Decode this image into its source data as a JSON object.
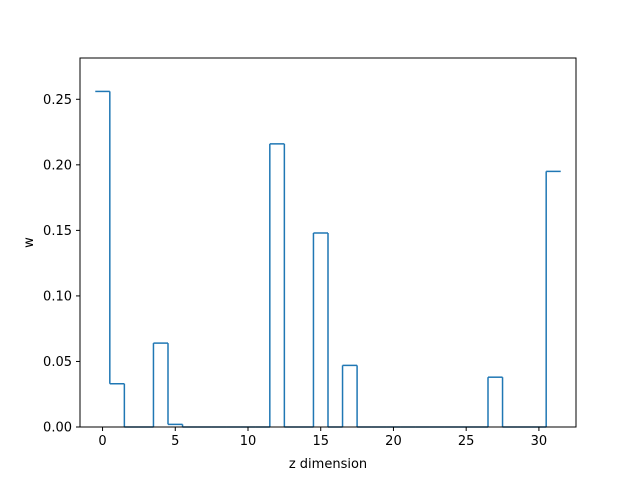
{
  "chart_data": {
    "type": "line",
    "style": "step",
    "xlabel": "z dimension",
    "ylabel": "w",
    "xlim": [
      -1.55,
      32.55
    ],
    "ylim": [
      0,
      0.2815
    ],
    "grid": false,
    "series_color": "#1f77b4",
    "x": [
      0,
      1,
      2,
      3,
      4,
      5,
      6,
      7,
      8,
      9,
      10,
      11,
      12,
      13,
      14,
      15,
      16,
      17,
      18,
      19,
      20,
      21,
      22,
      23,
      24,
      25,
      26,
      27,
      28,
      29,
      30,
      31
    ],
    "values": [
      0.256,
      0.033,
      0,
      0,
      0.064,
      0.002,
      0,
      0,
      0,
      0,
      0,
      0,
      0.216,
      0,
      0,
      0.148,
      0,
      0.047,
      0,
      0,
      0,
      0,
      0,
      0,
      0,
      0,
      0,
      0.038,
      0,
      0,
      0,
      0.195
    ],
    "xticks": [
      0,
      5,
      10,
      15,
      20,
      25,
      30
    ],
    "xtick_labels": [
      "0",
      "5",
      "10",
      "15",
      "20",
      "25",
      "30"
    ],
    "yticks": [
      0,
      0.05,
      0.1,
      0.15,
      0.2,
      0.25
    ],
    "ytick_labels": [
      "0.00",
      "0.05",
      "0.10",
      "0.15",
      "0.20",
      "0.25"
    ]
  }
}
